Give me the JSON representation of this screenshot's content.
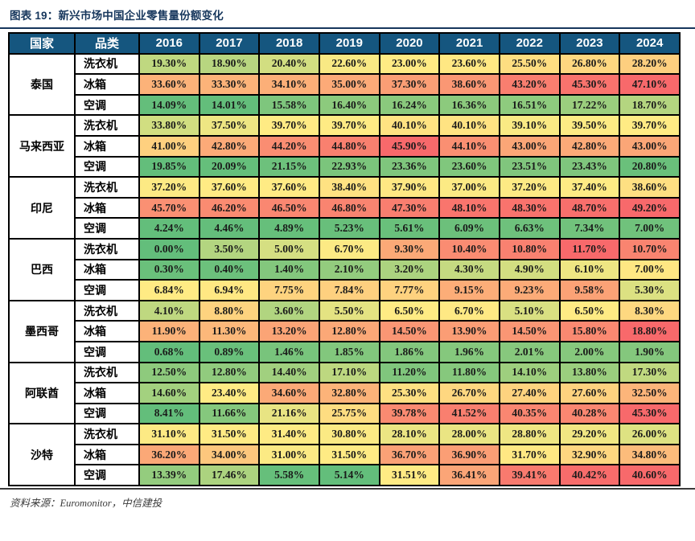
{
  "title": "图表 19：新兴市场中国企业零售量份额变化",
  "source": "资料来源：Euromonitor，中信建投",
  "colors": {
    "title_text": "#16365C",
    "top_rule": "#16365C",
    "bottom_rule": "#3A3A3A",
    "header_bg": "#15567F",
    "header_text": "#FFFFFF",
    "table_border": "#000000",
    "heat_min_green": "#63BE7B",
    "heat_mid_yellow": "#FFEB84",
    "heat_max_red": "#F8696B"
  },
  "chart_data": {
    "type": "heatmap",
    "title": "图表 19：新兴市场中国企业零售量份额变化",
    "unit": "%",
    "value_format": "two decimals + %",
    "color_scale": "per-country 3-color scale: min -> green #63BE7B, median -> yellow #FFEB84, max -> red #F8696B",
    "columns": [
      "国家",
      "品类",
      "2016",
      "2017",
      "2018",
      "2019",
      "2020",
      "2021",
      "2022",
      "2023",
      "2024"
    ],
    "countries": [
      {
        "name": "泰国",
        "rows": [
          {
            "category": "洗衣机",
            "values": [
              19.3,
              18.9,
              20.4,
              22.6,
              23.0,
              23.6,
              25.5,
              26.8,
              28.2
            ]
          },
          {
            "category": "冰箱",
            "values": [
              33.6,
              33.3,
              34.1,
              35.0,
              37.3,
              38.6,
              43.2,
              45.3,
              47.1
            ]
          },
          {
            "category": "空调",
            "values": [
              14.09,
              14.01,
              15.58,
              16.4,
              16.24,
              16.36,
              16.51,
              17.22,
              18.7
            ]
          }
        ]
      },
      {
        "name": "马来西亚",
        "rows": [
          {
            "category": "洗衣机",
            "values": [
              33.8,
              37.5,
              39.7,
              39.7,
              40.1,
              40.1,
              39.1,
              39.5,
              39.7
            ]
          },
          {
            "category": "冰箱",
            "values": [
              41.0,
              42.8,
              44.2,
              44.8,
              45.9,
              44.1,
              43.0,
              42.8,
              43.0
            ]
          },
          {
            "category": "空调",
            "values": [
              19.85,
              20.09,
              21.15,
              22.93,
              23.36,
              23.6,
              23.51,
              23.43,
              20.8
            ]
          }
        ]
      },
      {
        "name": "印尼",
        "rows": [
          {
            "category": "洗衣机",
            "values": [
              37.2,
              37.6,
              37.6,
              38.4,
              37.9,
              37.0,
              37.2,
              37.4,
              38.6
            ]
          },
          {
            "category": "冰箱",
            "values": [
              45.7,
              46.2,
              46.5,
              46.8,
              47.3,
              48.1,
              48.3,
              48.7,
              49.2
            ]
          },
          {
            "category": "空调",
            "values": [
              4.24,
              4.46,
              4.89,
              5.23,
              5.61,
              6.09,
              6.63,
              7.34,
              7.0
            ]
          }
        ]
      },
      {
        "name": "巴西",
        "rows": [
          {
            "category": "洗衣机",
            "values": [
              0.0,
              3.5,
              5.0,
              6.7,
              9.3,
              10.4,
              10.8,
              11.7,
              10.7
            ]
          },
          {
            "category": "冰箱",
            "values": [
              0.3,
              0.4,
              1.4,
              2.1,
              3.2,
              4.3,
              4.9,
              6.1,
              7.0
            ]
          },
          {
            "category": "空调",
            "values": [
              6.84,
              6.94,
              7.75,
              7.84,
              7.77,
              9.15,
              9.23,
              9.58,
              5.3
            ]
          }
        ]
      },
      {
        "name": "墨西哥",
        "rows": [
          {
            "category": "洗衣机",
            "values": [
              4.1,
              8.8,
              3.6,
              5.5,
              6.5,
              6.7,
              5.1,
              6.5,
              8.3
            ]
          },
          {
            "category": "冰箱",
            "values": [
              11.9,
              11.3,
              13.2,
              12.8,
              14.5,
              13.9,
              14.5,
              15.8,
              18.8
            ]
          },
          {
            "category": "空调",
            "values": [
              0.68,
              0.89,
              1.46,
              1.85,
              1.86,
              1.96,
              2.01,
              2.0,
              1.9
            ]
          }
        ]
      },
      {
        "name": "阿联酋",
        "rows": [
          {
            "category": "洗衣机",
            "values": [
              12.5,
              12.8,
              14.4,
              17.1,
              11.2,
              11.8,
              14.1,
              13.8,
              17.3
            ]
          },
          {
            "category": "冰箱",
            "values": [
              14.6,
              23.4,
              34.6,
              32.8,
              25.3,
              26.7,
              27.4,
              27.6,
              32.5
            ]
          },
          {
            "category": "空调",
            "values": [
              8.41,
              11.66,
              21.16,
              25.75,
              39.78,
              41.52,
              40.35,
              40.28,
              45.3
            ]
          }
        ]
      },
      {
        "name": "沙特",
        "rows": [
          {
            "category": "洗衣机",
            "values": [
              31.1,
              31.5,
              31.4,
              30.8,
              28.1,
              28.0,
              28.8,
              29.2,
              26.0
            ]
          },
          {
            "category": "冰箱",
            "values": [
              36.2,
              34.0,
              31.0,
              31.5,
              36.7,
              36.9,
              31.7,
              32.9,
              34.8
            ]
          },
          {
            "category": "空调",
            "values": [
              13.39,
              17.46,
              5.58,
              5.14,
              31.51,
              36.41,
              39.41,
              40.42,
              40.6
            ]
          }
        ]
      }
    ]
  }
}
